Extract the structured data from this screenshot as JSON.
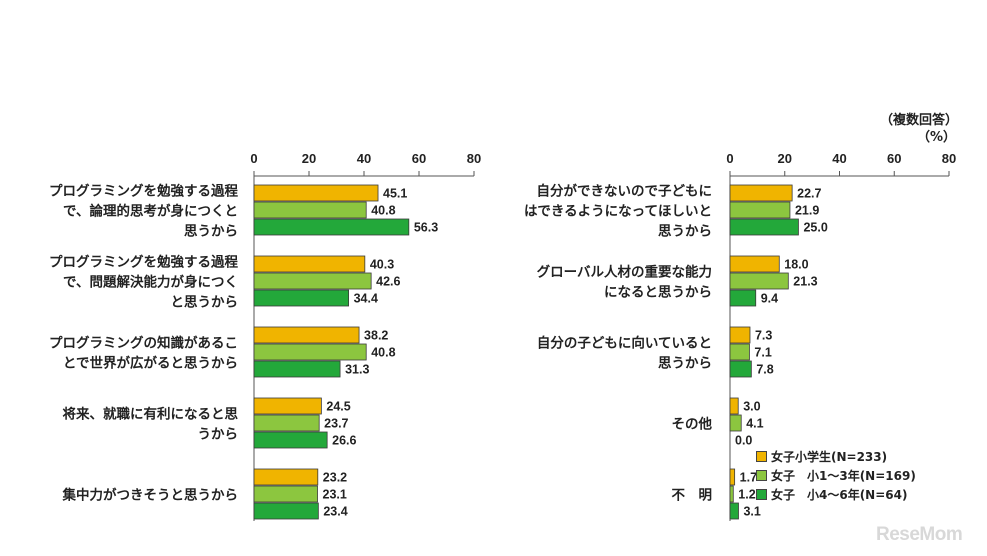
{
  "header": {
    "answer_type": "（複数回答）",
    "unit": "（%）"
  },
  "legend_items": [
    "女子小学生(N=233)",
    "女子　小1～3年(N=169)",
    "女子　小4～6年(N=64)"
  ],
  "colors": {
    "series_1": "#f0b400",
    "series_2": "#8cc63f",
    "series_3": "#23a83a"
  },
  "watermark": "ReseMom",
  "chart_data": [
    {
      "type": "bar",
      "orientation": "horizontal",
      "title": "",
      "xlim": [
        0,
        80
      ],
      "ticks": [
        0,
        20,
        40,
        60,
        80
      ],
      "grid": false,
      "categories": [
        [
          "プログラミングを勉強する過程",
          "で、論理的思考が身につくと",
          "思うから"
        ],
        [
          "プログラミングを勉強する過程",
          "で、問題解決能力が身につく",
          "と思うから"
        ],
        [
          "プログラミングの知識があるこ",
          "とで世界が広がると思うから"
        ],
        [
          "将来、就職に有利になると思",
          "うから"
        ],
        [
          "集中力がつきそうと思うから"
        ]
      ],
      "series": [
        {
          "name": "女子小学生(N=233)",
          "values": [
            45.1,
            40.3,
            38.2,
            24.5,
            23.2
          ]
        },
        {
          "name": "女子　小1～3年(N=169)",
          "values": [
            40.8,
            42.6,
            40.8,
            23.7,
            23.1
          ]
        },
        {
          "name": "女子　小4～6年(N=64)",
          "values": [
            56.3,
            34.4,
            31.3,
            26.6,
            23.4
          ]
        }
      ]
    },
    {
      "type": "bar",
      "orientation": "horizontal",
      "title": "",
      "xlim": [
        0,
        80
      ],
      "ticks": [
        0,
        20,
        40,
        60,
        80
      ],
      "grid": false,
      "categories": [
        [
          "自分ができないので子どもに",
          "はできるようになってほしいと",
          "思うから"
        ],
        [
          "グローバル人材の重要な能力",
          "になると思うから"
        ],
        [
          "自分の子どもに向いていると",
          "思うから"
        ],
        [
          "その他"
        ],
        [
          "不　明"
        ]
      ],
      "series": [
        {
          "name": "女子小学生(N=233)",
          "values": [
            22.7,
            18.0,
            7.3,
            3.0,
            1.7
          ]
        },
        {
          "name": "女子　小1～3年(N=169)",
          "values": [
            21.9,
            21.3,
            7.1,
            4.1,
            1.2
          ]
        },
        {
          "name": "女子　小4～6年(N=64)",
          "values": [
            25.0,
            9.4,
            7.8,
            0.0,
            3.1
          ]
        }
      ]
    }
  ]
}
